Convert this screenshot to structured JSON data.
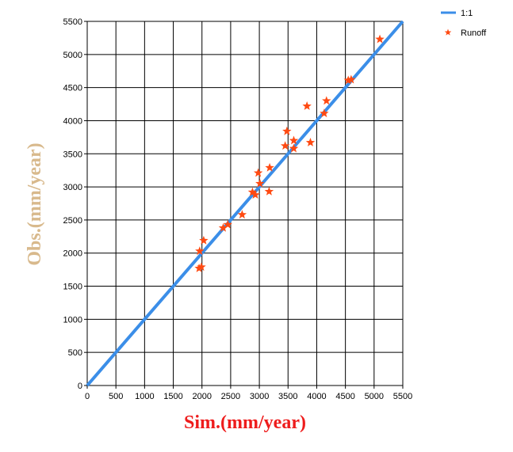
{
  "chart_data": {
    "type": "scatter",
    "title": "",
    "xlabel": "Sim.(mm/year)",
    "ylabel": "Obs.(mm/year)",
    "xlim": [
      0,
      5500
    ],
    "ylim": [
      0,
      5500
    ],
    "x_ticks": [
      0,
      500,
      1000,
      1500,
      2000,
      2500,
      3000,
      3500,
      4000,
      4500,
      5000,
      5500
    ],
    "y_ticks": [
      0,
      500,
      1000,
      1500,
      2000,
      2500,
      3000,
      3500,
      4000,
      4500,
      5000,
      5500
    ],
    "grid": true,
    "legend_position": "top-right",
    "colors": {
      "xlabel": "#ee1c1c",
      "ylabel": "#d8b98c",
      "line": "#3b8ee8",
      "marker": "#ff4a12"
    },
    "series": [
      {
        "name": "1:1",
        "kind": "line",
        "x": [
          0,
          5500
        ],
        "y": [
          0,
          5500
        ]
      },
      {
        "name": "Runoff",
        "kind": "scatter",
        "marker": "star",
        "points": [
          [
            1950,
            1770
          ],
          [
            1990,
            1790
          ],
          [
            1960,
            2030
          ],
          [
            2030,
            2190
          ],
          [
            2370,
            2380
          ],
          [
            2450,
            2430
          ],
          [
            2700,
            2580
          ],
          [
            2880,
            2920
          ],
          [
            2930,
            2880
          ],
          [
            2980,
            3210
          ],
          [
            3010,
            3050
          ],
          [
            3170,
            2930
          ],
          [
            3180,
            3290
          ],
          [
            3450,
            3620
          ],
          [
            3480,
            3840
          ],
          [
            3600,
            3700
          ],
          [
            3600,
            3580
          ],
          [
            3830,
            4220
          ],
          [
            3890,
            3670
          ],
          [
            4130,
            4110
          ],
          [
            4170,
            4300
          ],
          [
            4550,
            4610
          ],
          [
            4600,
            4620
          ],
          [
            5100,
            5230
          ]
        ]
      }
    ]
  }
}
